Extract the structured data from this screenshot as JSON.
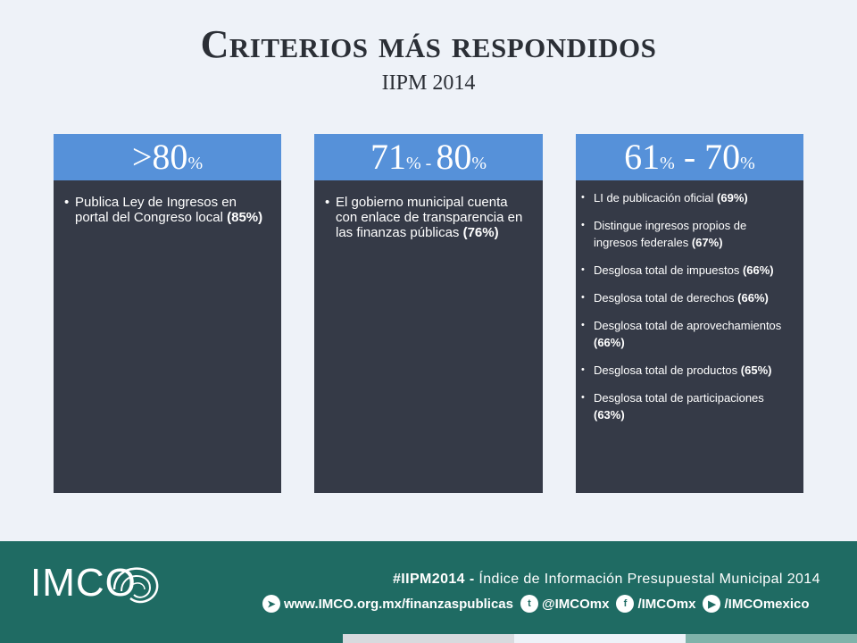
{
  "header": {
    "title": "Criterios más respondidos",
    "subtitle": "IIPM 2014"
  },
  "cards": [
    {
      "range_a": ">80",
      "pct_a": "%",
      "range_sep": "",
      "range_b": "",
      "pct_b": "",
      "items": [
        {
          "text": "Publica Ley de Ingresos en portal del Congreso local ",
          "value": "(85%)"
        }
      ]
    },
    {
      "range_a": "71",
      "pct_a": "%",
      "range_sep": " - ",
      "range_b": "80",
      "pct_b": "%",
      "items": [
        {
          "text": "El gobierno municipal cuenta con enlace de transparencia en las finanzas públicas ",
          "value": "(76%)"
        }
      ]
    },
    {
      "range_a": "61",
      "pct_a": "%",
      "range_sep": " - ",
      "range_b": "70",
      "pct_b": "%",
      "items": [
        {
          "text": "LI de publicación oficial ",
          "value": "(69%)"
        },
        {
          "text": "Distingue ingresos propios de ingresos federales ",
          "value": "(67%)"
        },
        {
          "text": "Desglosa total de impuestos ",
          "value": "(66%)"
        },
        {
          "text": "Desglosa total de derechos ",
          "value": "(66%)"
        },
        {
          "text": "Desglosa total de aprovechamientos ",
          "value": "(66%)"
        },
        {
          "text": "Desglosa total de productos ",
          "value": "(65%)"
        },
        {
          "text": "Desglosa total de participaciones ",
          "value": "(63%)"
        }
      ]
    }
  ],
  "footer": {
    "logo_text": "IMCO",
    "hashtag": "#IIPM2014 -",
    "tagline": " Índice de Información Presupuestal Municipal 2014",
    "links": [
      {
        "icon": "telegram-icon",
        "glyph": "➤",
        "label": "www.IMCO.org.mx/finanzaspublicas"
      },
      {
        "icon": "twitter-icon",
        "glyph": "t",
        "label": "@IMCOmx"
      },
      {
        "icon": "facebook-icon",
        "glyph": "f",
        "label": "/IMCOmx"
      },
      {
        "icon": "youtube-icon",
        "glyph": "▶",
        "label": "/IMCOmexico"
      }
    ],
    "stripe_colors": [
      "#1f6b63",
      "#1f6b63",
      "#d8dade",
      "#eef2f8",
      "#7fb3aa"
    ]
  }
}
